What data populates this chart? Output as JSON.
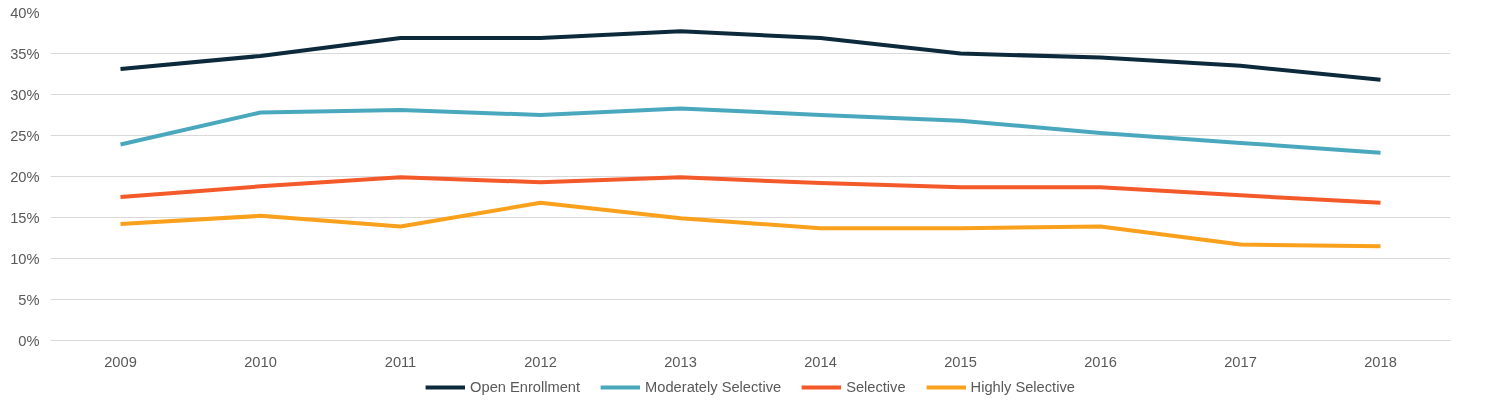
{
  "chart_data": {
    "type": "line",
    "categories": [
      "2009",
      "2010",
      "2011",
      "2012",
      "2013",
      "2014",
      "2015",
      "2016",
      "2017",
      "2018"
    ],
    "series": [
      {
        "name": "Open Enrollment",
        "color": "#0d2a3c",
        "values": [
          33.1,
          34.7,
          36.9,
          36.9,
          37.7,
          36.9,
          35.0,
          34.5,
          33.5,
          31.8
        ]
      },
      {
        "name": "Moderately Selective",
        "color": "#4aa8be",
        "values": [
          23.9,
          27.8,
          28.1,
          27.5,
          28.3,
          27.5,
          26.8,
          25.3,
          24.1,
          22.9
        ]
      },
      {
        "name": "Selective",
        "color": "#f4592a",
        "values": [
          17.5,
          18.8,
          19.9,
          19.3,
          19.9,
          19.2,
          18.7,
          18.7,
          17.7,
          16.8
        ]
      },
      {
        "name": "Highly Selective",
        "color": "#f9a11d",
        "values": [
          14.2,
          15.2,
          13.9,
          16.8,
          14.9,
          13.7,
          13.7,
          13.9,
          11.7,
          11.5
        ]
      }
    ],
    "ylim": [
      0,
      40
    ],
    "yticks": [
      {
        "value": 0,
        "label": "0%"
      },
      {
        "value": 5,
        "label": "5%"
      },
      {
        "value": 10,
        "label": "10%"
      },
      {
        "value": 15,
        "label": "15%"
      },
      {
        "value": 20,
        "label": "20%"
      },
      {
        "value": 25,
        "label": "25%"
      },
      {
        "value": 30,
        "label": "30%"
      },
      {
        "value": 35,
        "label": "35%"
      },
      {
        "value": 40,
        "label": "40%"
      }
    ],
    "grid": "y",
    "legend": "bottom",
    "marker": "none",
    "line_style": "solid"
  }
}
